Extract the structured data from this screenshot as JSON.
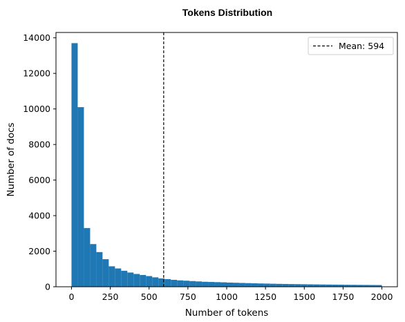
{
  "chart_data": {
    "type": "bar",
    "title": "Tokens Distribution",
    "xlabel": "Number of tokens",
    "ylabel": "Number of docs",
    "xlim": [
      -100,
      2100
    ],
    "ylim": [
      0,
      14300
    ],
    "xticks": [
      0,
      250,
      500,
      750,
      1000,
      1250,
      1500,
      1750,
      2000
    ],
    "yticks": [
      0,
      2000,
      4000,
      6000,
      8000,
      10000,
      12000,
      14000
    ],
    "bin_width": 40,
    "bin_start": 0,
    "bar_color": "#1f77b4",
    "values": [
      13700,
      10100,
      3300,
      2400,
      1950,
      1550,
      1150,
      1030,
      900,
      800,
      720,
      660,
      600,
      530,
      470,
      430,
      390,
      360,
      340,
      320,
      300,
      280,
      270,
      260,
      250,
      235,
      225,
      215,
      205,
      195,
      185,
      178,
      170,
      163,
      157,
      151,
      146,
      141,
      136,
      131,
      127,
      123,
      119,
      115,
      111,
      108,
      105,
      102,
      99,
      96
    ],
    "mean": 594,
    "mean_line_style": "dashed",
    "legend": {
      "label": "Mean: 594",
      "position": "top-right"
    },
    "grid": false
  }
}
